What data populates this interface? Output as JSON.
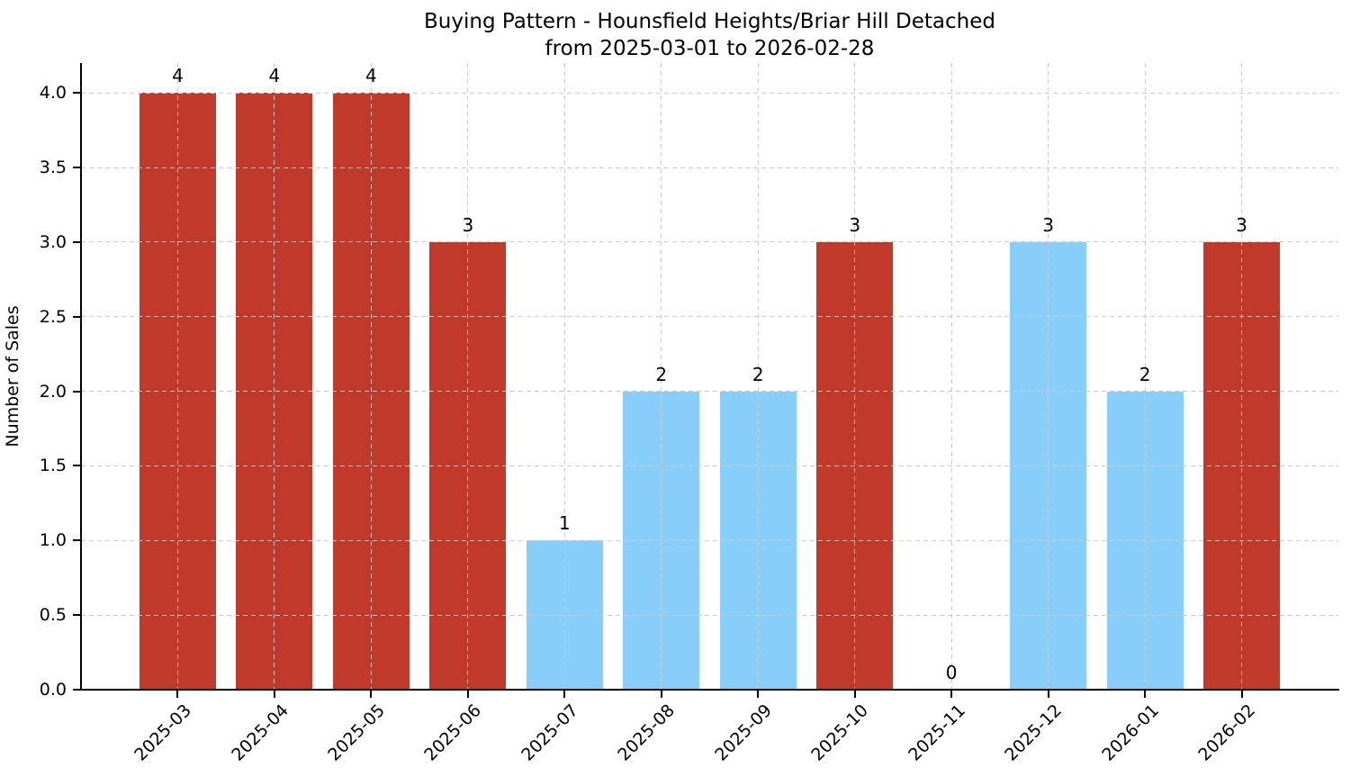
{
  "chart_data": {
    "type": "bar",
    "title": "Buying Pattern - Hounsfield Heights/Briar Hill Detached",
    "subtitle": "from 2025-03-01 to 2026-02-28",
    "ylabel": "Number of Sales",
    "xlabel": "",
    "categories": [
      "2025-03",
      "2025-04",
      "2025-05",
      "2025-06",
      "2025-07",
      "2025-08",
      "2025-09",
      "2025-10",
      "2025-11",
      "2025-12",
      "2026-01",
      "2026-02"
    ],
    "values": [
      4,
      4,
      4,
      3,
      1,
      2,
      2,
      3,
      0,
      3,
      2,
      3
    ],
    "value_labels": [
      "4",
      "4",
      "4",
      "3",
      "1",
      "2",
      "2",
      "3",
      "0",
      "3",
      "2",
      "3"
    ],
    "bar_colors": [
      "red",
      "red",
      "red",
      "red",
      "blue",
      "blue",
      "blue",
      "red",
      "none",
      "blue",
      "blue",
      "red"
    ],
    "palette": {
      "red": "#c0392b",
      "blue": "#87cefa"
    },
    "yticks": [
      "0.0",
      "0.5",
      "1.0",
      "1.5",
      "2.0",
      "2.5",
      "3.0",
      "3.5",
      "4.0"
    ],
    "ytick_values": [
      0,
      0.5,
      1,
      1.5,
      2,
      2.5,
      3,
      3.5,
      4
    ],
    "ylim": [
      0,
      4.2
    ],
    "grid": "dashed, both axes, drawn over bars",
    "grid_color": "#cccccc",
    "axis_color": "#000000",
    "background_color": "#ffffff",
    "legend": "none"
  }
}
